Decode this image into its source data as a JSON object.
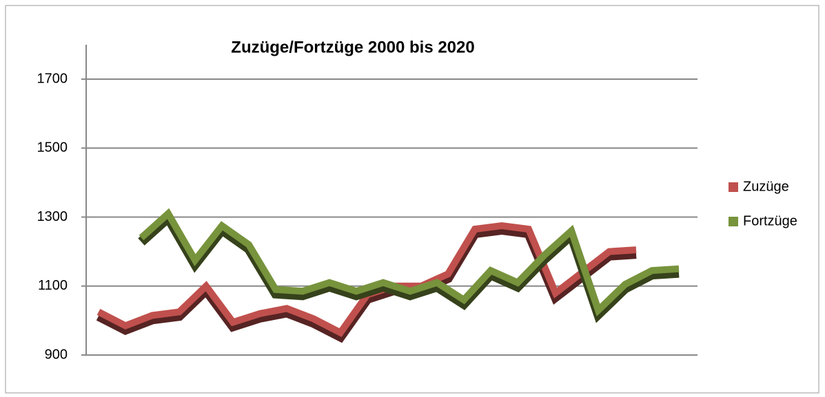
{
  "chart_data": {
    "type": "line",
    "title": "Zuzüge/Fortzüge  2000 bis 2020",
    "series": [
      {
        "name": "Zuzüge",
        "color": "#c0504d",
        "values": [
          1025,
          985,
          1015,
          1025,
          1100,
          995,
          1020,
          1035,
          1005,
          965,
          1075,
          1100,
          1100,
          1135,
          1265,
          1275,
          1265,
          1080,
          1140,
          1200,
          1205
        ]
      },
      {
        "name": "Fortzüge",
        "color": "#77933c",
        "values": [
          1240,
          1310,
          1175,
          1275,
          1220,
          1090,
          1085,
          1110,
          1085,
          1110,
          1085,
          1110,
          1060,
          1145,
          1110,
          1190,
          1260,
          1030,
          1105,
          1145,
          1150
        ]
      }
    ],
    "ylim": [
      900,
      1700
    ],
    "yticks": [
      900,
      1100,
      1300,
      1500,
      1700
    ],
    "grid": true,
    "legend": "right"
  }
}
